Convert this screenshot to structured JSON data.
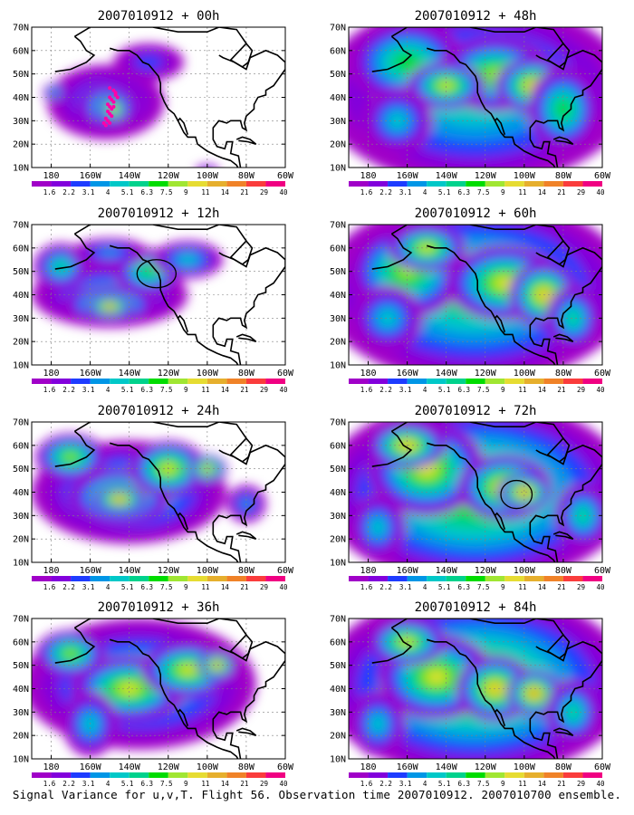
{
  "footer": "Signal Variance for u,v,T. Flight 56. Observation time 2007010912. 2007010700 ensemble.",
  "colorbar": {
    "labels": [
      "1.6",
      "2.2",
      "3.1",
      "4",
      "5.1",
      "6.3",
      "7.5",
      "9",
      "11",
      "14",
      "21",
      "29",
      "40"
    ],
    "colors": [
      "#a000c8",
      "#8200dc",
      "#1e3cff",
      "#0096e6",
      "#00c8c8",
      "#00d28c",
      "#00dc00",
      "#a0e632",
      "#e6dc32",
      "#e6af2d",
      "#f08228",
      "#fa3c3c",
      "#f00082"
    ]
  },
  "axes": {
    "y_ticks": [
      "10N",
      "20N",
      "30N",
      "40N",
      "50N",
      "60N",
      "70N"
    ],
    "x_ticks": [
      "180",
      "160W",
      "140W",
      "120W",
      "100W",
      "80W",
      "60W"
    ]
  },
  "chart_data": [
    {
      "type": "heatmap",
      "title": "2007010912 + 00h",
      "xlim": [
        -190,
        -60
      ],
      "ylim": [
        10,
        70
      ],
      "blobs": [
        [
          -152,
          38,
          30,
          16,
          3
        ],
        [
          -150,
          36,
          16,
          10,
          6
        ],
        [
          -148,
          35,
          8,
          6,
          9
        ],
        [
          -130,
          55,
          18,
          8,
          2
        ],
        [
          -178,
          42,
          6,
          4,
          4
        ],
        [
          -100,
          8,
          6,
          3,
          2
        ]
      ],
      "dots": [
        [
          -150,
          44
        ],
        [
          -148,
          43
        ],
        [
          -147,
          42
        ],
        [
          -150,
          40
        ],
        [
          -149,
          39
        ],
        [
          -148,
          38
        ],
        [
          -151,
          37
        ],
        [
          -150,
          36
        ],
        [
          -149,
          35
        ],
        [
          -151,
          34
        ],
        [
          -150,
          33
        ],
        [
          -152,
          31
        ],
        [
          -151,
          30
        ],
        [
          -153,
          29
        ],
        [
          -152,
          28
        ],
        [
          -147,
          41
        ],
        [
          -146,
          40
        ],
        [
          -148,
          36
        ],
        [
          -149,
          32
        ],
        [
          -150,
          29
        ]
      ],
      "circle": null
    },
    {
      "type": "heatmap",
      "title": "2007010912 + 48h",
      "xlim": [
        -190,
        -60
      ],
      "ylim": [
        10,
        70
      ],
      "blobs": [
        [
          -125,
          42,
          80,
          40,
          5
        ],
        [
          -160,
          55,
          30,
          18,
          6
        ],
        [
          -115,
          50,
          30,
          16,
          7
        ],
        [
          -95,
          45,
          20,
          12,
          9
        ],
        [
          -140,
          45,
          20,
          10,
          8
        ],
        [
          -165,
          30,
          18,
          14,
          4
        ],
        [
          -80,
          35,
          18,
          18,
          6
        ]
      ],
      "dots": [],
      "circle": null
    },
    {
      "type": "heatmap",
      "title": "2007010912 + 12h",
      "xlim": [
        -190,
        -60
      ],
      "ylim": [
        10,
        70
      ],
      "blobs": [
        [
          -150,
          40,
          40,
          14,
          4
        ],
        [
          -150,
          36,
          24,
          8,
          7
        ],
        [
          -150,
          35,
          12,
          5,
          10
        ],
        [
          -175,
          52,
          14,
          10,
          5
        ],
        [
          -130,
          50,
          18,
          10,
          6
        ],
        [
          -110,
          55,
          18,
          8,
          4
        ],
        [
          -150,
          58,
          20,
          6,
          3
        ]
      ],
      "dots": [],
      "circle": [
        -126,
        49,
        10,
        6
      ]
    },
    {
      "type": "heatmap",
      "title": "2007010912 + 60h",
      "xlim": [
        -190,
        -60
      ],
      "ylim": [
        10,
        70
      ],
      "blobs": [
        [
          -125,
          42,
          80,
          40,
          6
        ],
        [
          -160,
          50,
          30,
          20,
          7
        ],
        [
          -110,
          45,
          30,
          16,
          8
        ],
        [
          -90,
          40,
          18,
          14,
          9
        ],
        [
          -150,
          60,
          20,
          10,
          8
        ],
        [
          -170,
          30,
          18,
          14,
          4
        ],
        [
          -75,
          30,
          14,
          14,
          5
        ]
      ],
      "dots": [],
      "circle": null
    },
    {
      "type": "heatmap",
      "title": "2007010912 + 24h",
      "xlim": [
        -190,
        -60
      ],
      "ylim": [
        10,
        70
      ],
      "blobs": [
        [
          -140,
          40,
          50,
          22,
          5
        ],
        [
          -145,
          38,
          26,
          12,
          8
        ],
        [
          -145,
          37,
          14,
          6,
          10
        ],
        [
          -170,
          55,
          18,
          10,
          7
        ],
        [
          -120,
          50,
          20,
          12,
          8
        ],
        [
          -100,
          50,
          10,
          6,
          9
        ],
        [
          -80,
          35,
          10,
          8,
          3
        ]
      ],
      "dots": [],
      "circle": null
    },
    {
      "type": "heatmap",
      "title": "2007010912 + 72h",
      "xlim": [
        -190,
        -60
      ],
      "ylim": [
        10,
        70
      ],
      "blobs": [
        [
          -125,
          40,
          80,
          40,
          7
        ],
        [
          -150,
          50,
          30,
          20,
          8
        ],
        [
          -110,
          42,
          24,
          14,
          9
        ],
        [
          -100,
          40,
          14,
          8,
          10
        ],
        [
          -160,
          60,
          20,
          10,
          9
        ],
        [
          -175,
          25,
          14,
          14,
          4
        ],
        [
          -70,
          30,
          14,
          14,
          5
        ]
      ],
      "dots": [],
      "circle": [
        -104,
        39,
        8,
        6
      ]
    },
    {
      "type": "heatmap",
      "title": "2007010912 + 36h",
      "xlim": [
        -190,
        -60
      ],
      "ylim": [
        10,
        70
      ],
      "blobs": [
        [
          -135,
          42,
          60,
          28,
          5
        ],
        [
          -140,
          40,
          30,
          14,
          8
        ],
        [
          -110,
          48,
          24,
          12,
          8
        ],
        [
          -95,
          50,
          10,
          6,
          10
        ],
        [
          -170,
          55,
          18,
          10,
          7
        ],
        [
          -160,
          25,
          14,
          14,
          4
        ]
      ],
      "dots": [],
      "circle": null
    },
    {
      "type": "heatmap",
      "title": "2007010912 + 84h",
      "xlim": [
        -190,
        -60
      ],
      "ylim": [
        10,
        70
      ],
      "blobs": [
        [
          -125,
          42,
          80,
          40,
          7
        ],
        [
          -145,
          45,
          30,
          18,
          8
        ],
        [
          -115,
          40,
          20,
          14,
          9
        ],
        [
          -95,
          38,
          14,
          10,
          10
        ],
        [
          -160,
          60,
          20,
          10,
          8
        ],
        [
          -175,
          25,
          14,
          14,
          4
        ],
        [
          -75,
          30,
          14,
          14,
          5
        ]
      ],
      "dots": [],
      "circle": null
    }
  ]
}
